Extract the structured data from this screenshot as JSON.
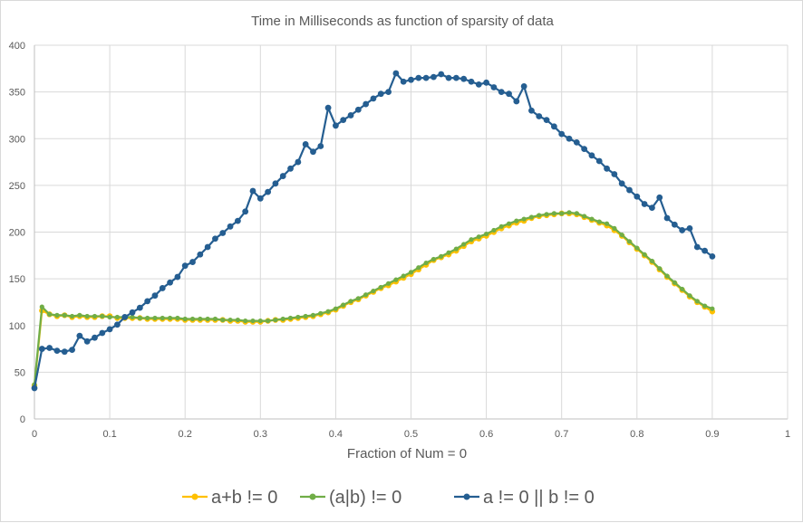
{
  "chart_data": {
    "type": "line",
    "title": "Time in Milliseconds as function of sparsity of data",
    "xlabel": "Fraction of Num = 0",
    "ylabel": "",
    "xlim": [
      0,
      1
    ],
    "ylim": [
      0,
      400
    ],
    "xticks": [
      "0",
      "0.1",
      "0.2",
      "0.3",
      "0.4",
      "0.5",
      "0.6",
      "0.7",
      "0.8",
      "0.9",
      "1"
    ],
    "yticks": [
      "0",
      "50",
      "100",
      "150",
      "200",
      "250",
      "300",
      "350",
      "400"
    ],
    "grid": true,
    "legend": "bottom",
    "x_start": 0,
    "x_step": 0.01,
    "series": [
      {
        "name": "a+b != 0",
        "color": "#FFC000",
        "values": [
          36,
          116,
          112,
          110,
          111,
          109,
          110,
          109,
          109,
          110,
          110,
          108,
          108,
          108,
          108,
          107,
          107,
          107,
          107,
          107,
          106,
          106,
          106,
          106,
          106,
          106,
          105,
          105,
          104,
          104,
          104,
          105,
          106,
          106,
          107,
          108,
          109,
          110,
          112,
          114,
          117,
          121,
          125,
          128,
          132,
          136,
          140,
          143,
          147,
          151,
          155,
          160,
          165,
          170,
          173,
          176,
          180,
          185,
          190,
          193,
          196,
          200,
          204,
          207,
          210,
          212,
          215,
          217,
          218,
          219,
          220,
          220,
          219,
          216,
          213,
          210,
          207,
          202,
          196,
          189,
          182,
          175,
          168,
          160,
          152,
          145,
          138,
          131,
          125,
          120,
          115
        ]
      },
      {
        "name": "(a|b) != 0",
        "color": "#70AD47",
        "values": [
          37,
          120,
          112,
          111,
          111,
          110,
          111,
          110,
          110,
          110,
          109,
          109,
          109,
          109,
          108,
          108,
          108,
          108,
          108,
          108,
          107,
          107,
          107,
          107,
          107,
          106,
          106,
          106,
          105,
          105,
          105,
          105,
          106,
          107,
          108,
          109,
          110,
          111,
          113,
          115,
          118,
          122,
          126,
          129,
          133,
          137,
          141,
          145,
          149,
          153,
          157,
          162,
          167,
          171,
          174,
          178,
          182,
          187,
          192,
          195,
          198,
          202,
          206,
          209,
          212,
          214,
          216,
          218,
          219,
          220,
          220,
          221,
          220,
          217,
          214,
          211,
          209,
          204,
          197,
          190,
          183,
          176,
          169,
          161,
          153,
          146,
          139,
          132,
          126,
          121,
          118
        ]
      },
      {
        "name": "a != 0 || b != 0",
        "color": "#255E91",
        "values": [
          33,
          75,
          76,
          73,
          72,
          74,
          89,
          83,
          87,
          92,
          96,
          101,
          109,
          114,
          119,
          126,
          132,
          140,
          146,
          152,
          164,
          168,
          176,
          184,
          193,
          199,
          206,
          212,
          222,
          244,
          236,
          243,
          252,
          260,
          268,
          275,
          294,
          286,
          292,
          333,
          314,
          320,
          325,
          331,
          337,
          343,
          348,
          350,
          370,
          361,
          363,
          365,
          365,
          366,
          369,
          365,
          365,
          364,
          361,
          358,
          360,
          355,
          350,
          348,
          340,
          356,
          330,
          324,
          320,
          313,
          305,
          300,
          296,
          289,
          282,
          276,
          268,
          262,
          252,
          245,
          238,
          230,
          226,
          237,
          215,
          208,
          202,
          204,
          184,
          180,
          174
        ]
      }
    ]
  }
}
